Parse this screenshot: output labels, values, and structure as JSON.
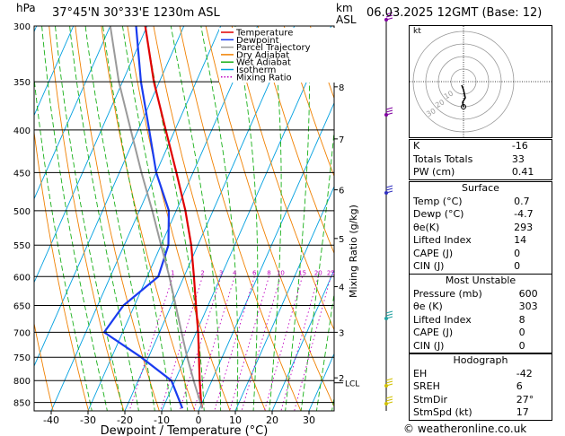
{
  "header": {
    "hpa_label": "hPa",
    "location": "37°45'N  30°33'E  1230m  ASL",
    "km_label": "km",
    "asl_label": "ASL",
    "datetime": "06.03.2025  12GMT  (Base: 12)"
  },
  "legend": [
    {
      "label": "Temperature",
      "color": "#e00000",
      "style": "solid"
    },
    {
      "label": "Dewpoint",
      "color": "#1a3cf0",
      "style": "solid"
    },
    {
      "label": "Parcel Trajectory",
      "color": "#9a9a9a",
      "style": "solid"
    },
    {
      "label": "Dry Adiabat",
      "color": "#f08000",
      "style": "solid"
    },
    {
      "label": "Wet Adiabat",
      "color": "#18b018",
      "style": "solid"
    },
    {
      "label": "Isotherm",
      "color": "#00a0e0",
      "style": "solid"
    },
    {
      "label": "Mixing Ratio",
      "color": "#c000c0",
      "style": "dotted"
    }
  ],
  "chart_data": {
    "type": "line",
    "xlabel": "Dewpoint / Temperature (°C)",
    "ylabel": "Mixing Ratio (g/kg)",
    "pressure_levels": [
      300,
      350,
      400,
      450,
      500,
      550,
      600,
      650,
      700,
      750,
      800,
      850
    ],
    "x_ticks": [
      -40,
      -30,
      -20,
      -10,
      0,
      10,
      20,
      30
    ],
    "xlim": [
      -42,
      36
    ],
    "plim": [
      300,
      870
    ],
    "km_ticks": [
      {
        "label": "8",
        "p": 355
      },
      {
        "label": "7",
        "p": 410
      },
      {
        "label": "6",
        "p": 472
      },
      {
        "label": "5",
        "p": 540
      },
      {
        "label": "4",
        "p": 617
      },
      {
        "label": "3",
        "p": 700
      },
      {
        "label": "2",
        "p": 794
      }
    ],
    "lcl_label": "LCL",
    "lcl_p": 805,
    "mixing_ratio_labels": [
      "1",
      "2",
      "3",
      "4",
      "6",
      "8",
      "10",
      "15",
      "20",
      "25"
    ],
    "mixing_ratio_values": [
      1,
      2,
      3,
      4,
      6,
      8,
      10,
      15,
      20,
      25
    ],
    "series": [
      {
        "name": "Temperature",
        "p": [
          864,
          850,
          800,
          750,
          700,
          650,
          600,
          550,
          500,
          450,
          400,
          350,
          300
        ],
        "t": [
          0.7,
          -0.3,
          -3.3,
          -6.3,
          -9.5,
          -13.3,
          -17.3,
          -21.8,
          -27.5,
          -34.5,
          -42.5,
          -51.5,
          -60.5
        ]
      },
      {
        "name": "Dewpoint",
        "p": [
          864,
          850,
          800,
          750,
          700,
          650,
          600,
          550,
          500,
          450,
          400,
          350,
          300
        ],
        "t": [
          -4.7,
          -6,
          -11,
          -22,
          -35,
          -33,
          -27,
          -28,
          -32,
          -40,
          -47,
          -55,
          -63
        ]
      },
      {
        "name": "Parcel Trajectory",
        "p": [
          864,
          805,
          750,
          700,
          650,
          600,
          550,
          500,
          450,
          400,
          350,
          300
        ],
        "t": [
          0.7,
          -4.5,
          -9.5,
          -14,
          -18.8,
          -24,
          -30,
          -36.5,
          -44,
          -52,
          -61,
          -70
        ]
      }
    ]
  },
  "hodograph": {
    "label": "kt",
    "ring_labels": [
      "10",
      "20",
      "30"
    ]
  },
  "indices": [
    {
      "label": "K",
      "value": "-16"
    },
    {
      "label": "Totals Totals",
      "value": "33"
    },
    {
      "label": "PW (cm)",
      "value": "0.41"
    }
  ],
  "surface": {
    "title": "Surface",
    "rows": [
      {
        "label": "Temp (°C)",
        "value": "0.7"
      },
      {
        "label": "Dewp (°C)",
        "value": "-4.7"
      },
      {
        "label": "θe(K)",
        "value": "293"
      },
      {
        "label": "Lifted Index",
        "value": "14"
      },
      {
        "label": "CAPE (J)",
        "value": "0"
      },
      {
        "label": "CIN (J)",
        "value": "0"
      }
    ]
  },
  "most_unstable": {
    "title": "Most Unstable",
    "rows": [
      {
        "label": "Pressure (mb)",
        "value": "600"
      },
      {
        "label": "θe (K)",
        "value": "303"
      },
      {
        "label": "Lifted Index",
        "value": "8"
      },
      {
        "label": "CAPE (J)",
        "value": "0"
      },
      {
        "label": "CIN (J)",
        "value": "0"
      }
    ]
  },
  "hodograph_params": {
    "title": "Hodograph",
    "rows": [
      {
        "label": "EH",
        "value": "-42"
      },
      {
        "label": "SREH",
        "value": "6"
      },
      {
        "label": "StmDir",
        "value": "27°"
      },
      {
        "label": "StmSpd (kt)",
        "value": "17"
      }
    ]
  },
  "credit": "© weatheronline.co.uk"
}
